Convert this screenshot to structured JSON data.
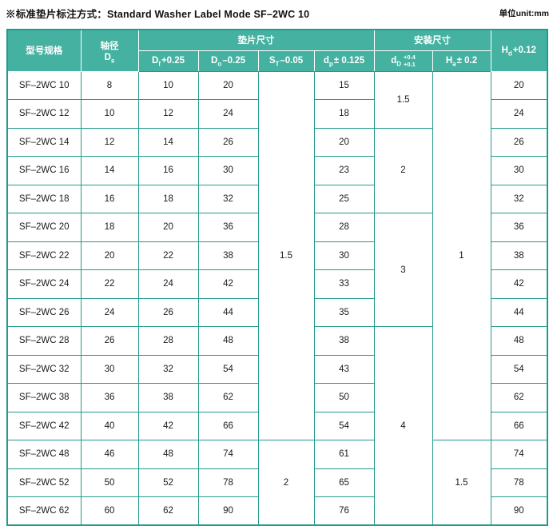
{
  "page_title": "※标准垫片标注方式：Standard Washer Label Mode SF–2WC 10",
  "unit_label": "单位unit:mm",
  "colors": {
    "header_bg": "#45b1a1",
    "grid_border": "#239a8b",
    "model_col_bg": "#eef4f1",
    "st_col_bg": "#ecf4f0",
    "dd_col_bg": "#e9f3ee",
    "hd_col_bg": "#e5f1ec",
    "header_text": "#ffffff",
    "body_text": "#1a1a1a"
  },
  "table": {
    "header": {
      "model": "型号规格",
      "shaft_label": "轴径",
      "shaft_sym": "D",
      "shaft_sub": "s",
      "washer_group": "垫片尺寸",
      "install_group": "安装尺寸",
      "df": {
        "sym": "D",
        "sub": "f",
        "tol": "+0.25"
      },
      "do": {
        "sym": "D",
        "sub": "o",
        "tol": "–0.25"
      },
      "st": {
        "sym": "S",
        "sub": "T",
        "tol": "–0.05"
      },
      "dp": {
        "sym": "d",
        "sub": "p",
        "tol": "± 0.125"
      },
      "dd": {
        "sym": "d",
        "sub": "D",
        "tol_top": "+0.4",
        "tol_bottom": "+0.1"
      },
      "ha": {
        "sym": "H",
        "sub": "a",
        "tol": "± 0.2"
      },
      "hd": {
        "sym": "H",
        "sub": "d",
        "tol": "+0.12"
      }
    },
    "rows": [
      [
        "SF–2WC 10",
        "8",
        "10",
        "20",
        "15",
        "20"
      ],
      [
        "SF–2WC 12",
        "10",
        "12",
        "24",
        "18",
        "24"
      ],
      [
        "SF–2WC 14",
        "12",
        "14",
        "26",
        "20",
        "26"
      ],
      [
        "SF–2WC 16",
        "14",
        "16",
        "30",
        "23",
        "30"
      ],
      [
        "SF–2WC 18",
        "16",
        "18",
        "32",
        "25",
        "32"
      ],
      [
        "SF–2WC 20",
        "18",
        "20",
        "36",
        "28",
        "36"
      ],
      [
        "SF–2WC 22",
        "20",
        "22",
        "38",
        "30",
        "38"
      ],
      [
        "SF–2WC 24",
        "22",
        "24",
        "42",
        "33",
        "42"
      ],
      [
        "SF–2WC 26",
        "24",
        "26",
        "44",
        "35",
        "44"
      ],
      [
        "SF–2WC 28",
        "26",
        "28",
        "48",
        "38",
        "48"
      ],
      [
        "SF–2WC 32",
        "30",
        "32",
        "54",
        "43",
        "54"
      ],
      [
        "SF–2WC 38",
        "36",
        "38",
        "62",
        "50",
        "62"
      ],
      [
        "SF–2WC 42",
        "40",
        "42",
        "66",
        "54",
        "66"
      ],
      [
        "SF–2WC 48",
        "46",
        "48",
        "74",
        "61",
        "74"
      ],
      [
        "SF–2WC 52",
        "50",
        "52",
        "78",
        "65",
        "78"
      ],
      [
        "SF–2WC 62",
        "60",
        "62",
        "90",
        "76",
        "90"
      ]
    ],
    "st_spans": [
      {
        "start": 0,
        "rows": 13,
        "value": "1.5"
      },
      {
        "start": 13,
        "rows": 3,
        "value": "2"
      }
    ],
    "dd_spans": [
      {
        "start": 0,
        "rows": 2,
        "value": "1.5"
      },
      {
        "start": 2,
        "rows": 3,
        "value": "2"
      },
      {
        "start": 5,
        "rows": 4,
        "value": "3"
      },
      {
        "start": 9,
        "rows": 7,
        "value": "4"
      }
    ],
    "ha_spans": [
      {
        "start": 0,
        "rows": 13,
        "value": "1"
      },
      {
        "start": 13,
        "rows": 3,
        "value": "1.5"
      }
    ]
  }
}
